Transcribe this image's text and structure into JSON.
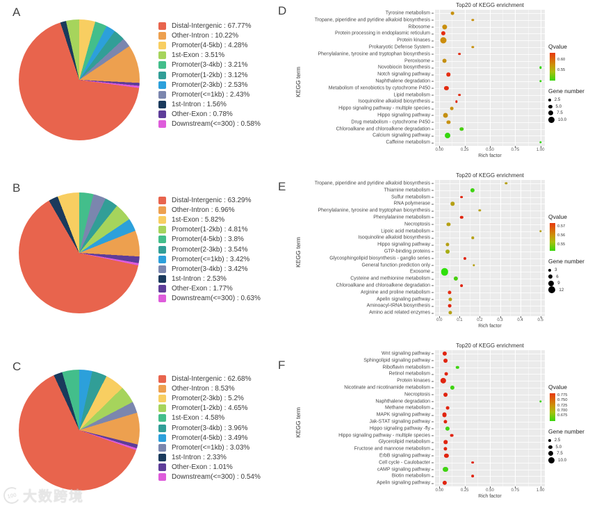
{
  "watermark": {
    "logo_text": "100",
    "text": "大数跨境"
  },
  "chart_data": [
    {
      "id": "A",
      "type": "pie",
      "slices": [
        {
          "label": "Distal-Intergenic",
          "value": 67.77,
          "color": "#e8644d"
        },
        {
          "label": "Other-Intron",
          "value": 10.22,
          "color": "#eda04f"
        },
        {
          "label": "Promoter(4-5kb)",
          "value": 4.28,
          "color": "#f8ce61"
        },
        {
          "label": "1st-Exon",
          "value": 3.51,
          "color": "#a6d45c"
        },
        {
          "label": "Promoter(3-4kb)",
          "value": 3.21,
          "color": "#43be8b"
        },
        {
          "label": "Promoter(1-2kb)",
          "value": 3.12,
          "color": "#319e97"
        },
        {
          "label": "Promoter(2-3kb)",
          "value": 2.53,
          "color": "#2ca0db"
        },
        {
          "label": "Promoter(<=1kb)",
          "value": 2.43,
          "color": "#7b86ae"
        },
        {
          "label": "1st-Intron",
          "value": 1.56,
          "color": "#1a3a5c"
        },
        {
          "label": "Other-Exon",
          "value": 0.78,
          "color": "#5e3d99"
        },
        {
          "label": "Downstream(<=300)",
          "value": 0.58,
          "color": "#de5cdb"
        }
      ],
      "clockwise_order": [
        2,
        4,
        6,
        5,
        7,
        1,
        9,
        10,
        0,
        8,
        3
      ]
    },
    {
      "id": "B",
      "type": "pie",
      "slices": [
        {
          "label": "Distal-Intergenic",
          "value": 63.29,
          "color": "#e8644d"
        },
        {
          "label": "Other-Intron",
          "value": 6.96,
          "color": "#eda04f"
        },
        {
          "label": "1st-Exon",
          "value": 5.82,
          "color": "#f8ce61"
        },
        {
          "label": "Promoter(1-2kb)",
          "value": 4.81,
          "color": "#a6d45c"
        },
        {
          "label": "Promoter(4-5kb)",
          "value": 3.8,
          "color": "#43be8b"
        },
        {
          "label": "Promoter(2-3kb)",
          "value": 3.54,
          "color": "#319e97"
        },
        {
          "label": "Promoter(<=1kb)",
          "value": 3.42,
          "color": "#2ca0db"
        },
        {
          "label": "Promoter(3-4kb)",
          "value": 3.42,
          "color": "#7b86ae"
        },
        {
          "label": "1st-Intron",
          "value": 2.53,
          "color": "#1a3a5c"
        },
        {
          "label": "Other-Exon",
          "value": 1.77,
          "color": "#5e3d99"
        },
        {
          "label": "Downstream(<=300)",
          "value": 0.63,
          "color": "#de5cdb"
        }
      ],
      "clockwise_order": [
        4,
        7,
        5,
        3,
        6,
        1,
        9,
        10,
        0,
        8,
        2
      ]
    },
    {
      "id": "C",
      "type": "pie",
      "slices": [
        {
          "label": "Distal-Intergenic",
          "value": 62.68,
          "color": "#e8644d"
        },
        {
          "label": "Other-Intron",
          "value": 8.53,
          "color": "#eda04f"
        },
        {
          "label": "Promoter(2-3kb)",
          "value": 5.2,
          "color": "#f8ce61"
        },
        {
          "label": "Promoter(1-2kb)",
          "value": 4.65,
          "color": "#a6d45c"
        },
        {
          "label": "1st-Exon",
          "value": 4.58,
          "color": "#43be8b"
        },
        {
          "label": "Promoter(3-4kb)",
          "value": 3.96,
          "color": "#319e97"
        },
        {
          "label": "Promoter(4-5kb)",
          "value": 3.49,
          "color": "#2ca0db"
        },
        {
          "label": "Promoter(<=1kb)",
          "value": 3.03,
          "color": "#7b86ae"
        },
        {
          "label": "1st-Intron",
          "value": 2.33,
          "color": "#1a3a5c"
        },
        {
          "label": "Other-Exon",
          "value": 1.01,
          "color": "#5e3d99"
        },
        {
          "label": "Downstream(<=300)",
          "value": 0.54,
          "color": "#de5cdb"
        }
      ],
      "clockwise_order": [
        6,
        5,
        2,
        3,
        7,
        1,
        9,
        10,
        0,
        8,
        4
      ]
    },
    {
      "id": "D",
      "type": "scatter",
      "title": "Top20 of KEGG enrichment",
      "xlabel": "Rich factor",
      "ylabel": "KEGG term",
      "xlim": [
        0,
        1.0
      ],
      "x_ticks": [
        {
          "label": "0.00",
          "v": 0
        },
        {
          "label": "0.25",
          "v": 0.25
        },
        {
          "label": "0.50",
          "v": 0.5
        },
        {
          "label": "0.75",
          "v": 0.75
        },
        {
          "label": "1.00",
          "v": 1.0
        }
      ],
      "qvalue_legend": {
        "title": "Qvalue",
        "gradient": [
          "#e8380c",
          "#cb9407",
          "#a8bf0e",
          "#37d60a"
        ],
        "ticks": [
          {
            "label": "0.60",
            "pos": 25
          },
          {
            "label": "0.55",
            "pos": 62
          }
        ]
      },
      "gene_legend": {
        "title": "Gene number",
        "entries": [
          {
            "label": "2.5",
            "gn": 2.5
          },
          {
            "label": "5.0",
            "gn": 5
          },
          {
            "label": "7.5",
            "gn": 7.5
          },
          {
            "label": "10.0",
            "gn": 10
          }
        ]
      },
      "points": [
        {
          "term": "Tyrosine metabolism",
          "x": 0.13,
          "gene_number": 4,
          "color": "#c79110"
        },
        {
          "term": "Tropane, piperidine and pyridine alkaloid biosynthesis",
          "x": 0.33,
          "gene_number": 2,
          "color": "#c79110"
        },
        {
          "term": "Ribosome",
          "x": 0.05,
          "gene_number": 7.5,
          "color": "#c98f0e"
        },
        {
          "term": "Protein processing in endoplasmic reticulum",
          "x": 0.04,
          "gene_number": 6,
          "color": "#e52d12"
        },
        {
          "term": "Protein kinases",
          "x": 0.04,
          "gene_number": 10,
          "color": "#cc8d0d"
        },
        {
          "term": "Prokaryotic Defense System",
          "x": 0.33,
          "gene_number": 2,
          "color": "#c79110"
        },
        {
          "term": "Phenylalanine, tyrosine and tryptophan biosynthesis",
          "x": 0.2,
          "gene_number": 2.5,
          "color": "#e02c12"
        },
        {
          "term": "Peroxisome",
          "x": 0.05,
          "gene_number": 7,
          "color": "#c48f11"
        },
        {
          "term": "Novobiocin biosynthesis",
          "x": 1.0,
          "gene_number": 2,
          "color": "#35d60e"
        },
        {
          "term": "Notch signaling pathway",
          "x": 0.09,
          "gene_number": 5,
          "color": "#e52d12"
        },
        {
          "term": "Naphthalene degradation",
          "x": 1.0,
          "gene_number": 2,
          "color": "#35d60e"
        },
        {
          "term": "Metabolism of xenobiotics by cytochrome P450",
          "x": 0.07,
          "gene_number": 6,
          "color": "#e22a10"
        },
        {
          "term": "Lipid metabolism",
          "x": 0.2,
          "gene_number": 2.5,
          "color": "#e02c12"
        },
        {
          "term": "Isoquinoline alkaloid biosynthesis",
          "x": 0.17,
          "gene_number": 2,
          "color": "#e02c12"
        },
        {
          "term": "Hippo signaling pathway - multiple species",
          "x": 0.12,
          "gene_number": 4,
          "color": "#c79110"
        },
        {
          "term": "Hippo signaling pathway",
          "x": 0.06,
          "gene_number": 7,
          "color": "#c48f11"
        },
        {
          "term": "Drug metabolism - cytochrome P450",
          "x": 0.09,
          "gene_number": 4.5,
          "color": "#c79110"
        },
        {
          "term": "Chloroalkane and chloroalkene degradation",
          "x": 0.22,
          "gene_number": 5,
          "color": "#49cf10"
        },
        {
          "term": "Calcium signaling pathway",
          "x": 0.08,
          "gene_number": 8.5,
          "color": "#35d60e"
        },
        {
          "term": "Caffeine metabolism",
          "x": 1.0,
          "gene_number": 2,
          "color": "#35d60e"
        }
      ]
    },
    {
      "id": "E",
      "type": "scatter",
      "title": "Top20 of KEGG enrichment",
      "xlabel": "Rich factor",
      "ylabel": "KEGG term",
      "xlim": [
        0,
        0.5
      ],
      "x_ticks": [
        {
          "label": "0.0",
          "v": 0
        },
        {
          "label": "0.1",
          "v": 0.1
        },
        {
          "label": "0.2",
          "v": 0.2
        },
        {
          "label": "0.3",
          "v": 0.3
        },
        {
          "label": "0.4",
          "v": 0.4
        },
        {
          "label": "0.5",
          "v": 0.5
        }
      ],
      "qvalue_legend": {
        "title": "Qvalue",
        "gradient": [
          "#e8380c",
          "#cb9407",
          "#a8bf0e",
          "#37d60a"
        ],
        "ticks": [
          {
            "label": "0.57",
            "pos": 12
          },
          {
            "label": "0.56",
            "pos": 45
          },
          {
            "label": "0.55",
            "pos": 78
          }
        ]
      },
      "gene_legend": {
        "title": "Gene number",
        "entries": [
          {
            "label": "3",
            "gn": 3
          },
          {
            "label": "6",
            "gn": 6
          },
          {
            "label": "9",
            "gn": 9
          },
          {
            "label": "12",
            "gn": 12
          }
        ]
      },
      "points": [
        {
          "term": "Tropane, piperidine and pyridine alkaloid biosynthesis",
          "x": 0.33,
          "gene_number": 2,
          "color": "#b5a014"
        },
        {
          "term": "Thiamine metabolism",
          "x": 0.165,
          "gene_number": 6,
          "color": "#3fd312"
        },
        {
          "term": "Sulfur metabolism",
          "x": 0.11,
          "gene_number": 2.5,
          "color": "#e0240f"
        },
        {
          "term": "RNA polymerase",
          "x": 0.065,
          "gene_number": 5,
          "color": "#b5a014"
        },
        {
          "term": "Phenylalanine, tyrosine and tryptophan biosynthesis",
          "x": 0.2,
          "gene_number": 2,
          "color": "#b5a014"
        },
        {
          "term": "Phenylalanine metabolism",
          "x": 0.11,
          "gene_number": 3.5,
          "color": "#e0240f"
        },
        {
          "term": "Necroptosis",
          "x": 0.045,
          "gene_number": 4.5,
          "color": "#b5a014"
        },
        {
          "term": "Lipoic acid metabolism",
          "x": 0.5,
          "gene_number": 2,
          "color": "#b5a014"
        },
        {
          "term": "Isoquinoline alkaloid biosynthesis",
          "x": 0.165,
          "gene_number": 2,
          "color": "#b5a014"
        },
        {
          "term": "Hippo signaling pathway",
          "x": 0.04,
          "gene_number": 4.5,
          "color": "#b5a014"
        },
        {
          "term": "GTP-binding proteins",
          "x": 0.04,
          "gene_number": 5.5,
          "color": "#a6ad13"
        },
        {
          "term": "Glycosphingolipid biosynthesis - ganglio series",
          "x": 0.125,
          "gene_number": 3,
          "color": "#e0240f"
        },
        {
          "term": "General function prediction only",
          "x": 0.17,
          "gene_number": 2,
          "color": "#b5a014"
        },
        {
          "term": "Exosome",
          "x": 0.025,
          "gene_number": 12,
          "color": "#2fe00c"
        },
        {
          "term": "Cysteine and methionine metabolism",
          "x": 0.08,
          "gene_number": 6,
          "color": "#49cf10"
        },
        {
          "term": "Chloroalkane and chloroalkene degradation",
          "x": 0.11,
          "gene_number": 2.5,
          "color": "#e0240f"
        },
        {
          "term": "Arginine and proline metabolism",
          "x": 0.05,
          "gene_number": 4.5,
          "color": "#e52d12"
        },
        {
          "term": "Apelin signaling pathway",
          "x": 0.055,
          "gene_number": 4.5,
          "color": "#b5a014"
        },
        {
          "term": "Aminoacyl-tRNA biosynthesis",
          "x": 0.05,
          "gene_number": 4,
          "color": "#e0240f"
        },
        {
          "term": "Amino acid related enzymes",
          "x": 0.055,
          "gene_number": 4.5,
          "color": "#b5a014"
        }
      ]
    },
    {
      "id": "F",
      "type": "scatter",
      "title": "Top20 of KEGG enrichment",
      "xlabel": "Rich factor",
      "ylabel": "KEGG term",
      "xlim": [
        0,
        1.0
      ],
      "x_ticks": [
        {
          "label": "0.00",
          "v": 0
        },
        {
          "label": "0.25",
          "v": 0.25
        },
        {
          "label": "0.50",
          "v": 0.5
        },
        {
          "label": "0.75",
          "v": 0.75
        },
        {
          "label": "1.00",
          "v": 1.0
        }
      ],
      "qvalue_legend": {
        "title": "Qvalue",
        "gradient": [
          "#e8380c",
          "#cb9407",
          "#a8bf0e",
          "#37d60a"
        ],
        "ticks": [
          {
            "label": "0.775",
            "pos": 8
          },
          {
            "label": "0.750",
            "pos": 26
          },
          {
            "label": "0.725",
            "pos": 44
          },
          {
            "label": "0.700",
            "pos": 62
          },
          {
            "label": "0.675",
            "pos": 80
          }
        ]
      },
      "gene_legend": {
        "title": "Gene number",
        "entries": [
          {
            "label": "2.5",
            "gn": 2.5
          },
          {
            "label": "5.0",
            "gn": 5
          },
          {
            "label": "7.5",
            "gn": 7.5
          },
          {
            "label": "10.0",
            "gn": 10
          }
        ]
      },
      "points": [
        {
          "term": "Wnt signaling pathway",
          "x": 0.05,
          "gene_number": 6,
          "color": "#e0240f"
        },
        {
          "term": "Sphingolipid signaling pathway",
          "x": 0.06,
          "gene_number": 5.5,
          "color": "#e0240f"
        },
        {
          "term": "Riboflavin metabolism",
          "x": 0.18,
          "gene_number": 3.5,
          "color": "#3fd312"
        },
        {
          "term": "Retinol metabolism",
          "x": 0.07,
          "gene_number": 4,
          "color": "#e0240f"
        },
        {
          "term": "Protein kinases",
          "x": 0.04,
          "gene_number": 9,
          "color": "#e0240f"
        },
        {
          "term": "Nicotinate and nicotinamide metabolism",
          "x": 0.13,
          "gene_number": 6,
          "color": "#3fd312"
        },
        {
          "term": "Necroptosis",
          "x": 0.06,
          "gene_number": 5.5,
          "color": "#e0240f"
        },
        {
          "term": "Naphthalene degradation",
          "x": 1.0,
          "gene_number": 2,
          "color": "#3fd312"
        },
        {
          "term": "Methane metabolism",
          "x": 0.08,
          "gene_number": 4,
          "color": "#e0240f"
        },
        {
          "term": "MAPK signaling pathway",
          "x": 0.05,
          "gene_number": 7,
          "color": "#e0240f"
        },
        {
          "term": "Jak-STAT signaling pathway",
          "x": 0.06,
          "gene_number": 4.5,
          "color": "#e0240f"
        },
        {
          "term": "Hippo signaling pathway -fly",
          "x": 0.08,
          "gene_number": 6,
          "color": "#3fd312"
        },
        {
          "term": "Hippo signaling pathway - multiple species",
          "x": 0.12,
          "gene_number": 4,
          "color": "#e0240f"
        },
        {
          "term": "Glycerolipid metabolism",
          "x": 0.06,
          "gene_number": 5,
          "color": "#e0240f"
        },
        {
          "term": "Fructose and mannose metabolism",
          "x": 0.06,
          "gene_number": 4.5,
          "color": "#e0240f"
        },
        {
          "term": "ErbB signaling pathway",
          "x": 0.07,
          "gene_number": 6,
          "color": "#e0240f"
        },
        {
          "term": "Cell cycle - Caulobacter",
          "x": 0.33,
          "gene_number": 2.5,
          "color": "#e0240f"
        },
        {
          "term": "cAMP signaling pathway",
          "x": 0.06,
          "gene_number": 8.5,
          "color": "#3fd312"
        },
        {
          "term": "Biotin metabolism",
          "x": 0.33,
          "gene_number": 2.5,
          "color": "#e0240f"
        },
        {
          "term": "Apelin signaling pathway",
          "x": 0.05,
          "gene_number": 6,
          "color": "#e0240f"
        }
      ]
    }
  ]
}
